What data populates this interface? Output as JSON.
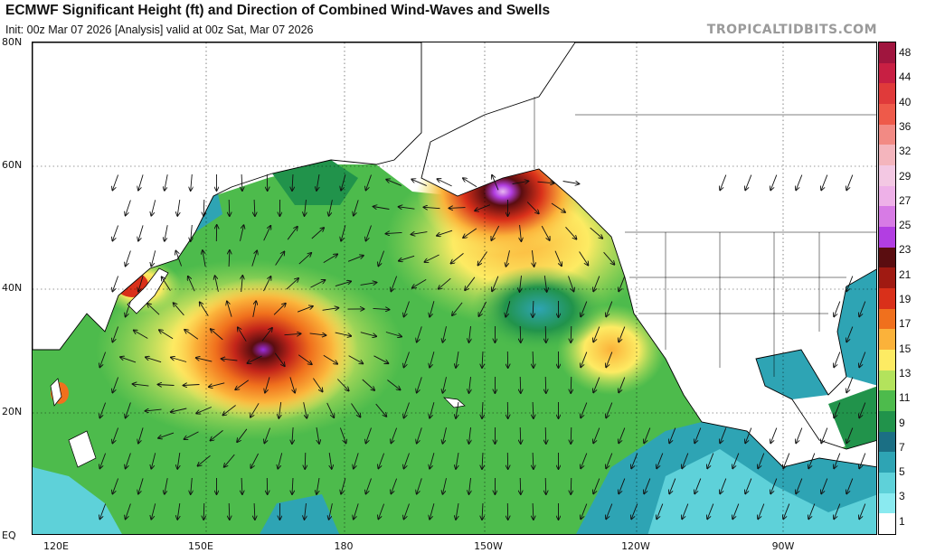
{
  "header": {
    "title": "ECMWF Significant Height (ft) and Direction of Combined Wind-Waves and Swells",
    "subtitle": "Init: 00z Mar 07 2026   [Analysis]   valid at 00z Sat, Mar 07 2026",
    "brand": "TROPICALTIDBITS.COM"
  },
  "map": {
    "lat_labels": [
      "80N",
      "60N",
      "40N",
      "20N",
      "EQ"
    ],
    "lon_labels": [
      "120E",
      "150E",
      "180",
      "150W",
      "120W",
      "90W"
    ]
  },
  "colorbar": {
    "labels": [
      "48",
      "44",
      "40",
      "36",
      "32",
      "29",
      "27",
      "25",
      "23",
      "21",
      "19",
      "17",
      "15",
      "13",
      "11",
      "9",
      "7",
      "5",
      "3",
      "1"
    ],
    "colors": [
      "#a0153e",
      "#c81f43",
      "#e03a3a",
      "#ee5a4a",
      "#f28a84",
      "#f4b5bd",
      "#f3c8e3",
      "#eeb1e8",
      "#d77be5",
      "#b23ee2",
      "#5a0d10",
      "#a01a12",
      "#d9301a",
      "#f0701d",
      "#fbb23a",
      "#fdeb63",
      "#b3e35c",
      "#4dbb4c",
      "#21934b",
      "#1b6f84",
      "#2ea4b4",
      "#5ed1d9",
      "#8aeaf0",
      "#ffffff"
    ]
  },
  "legend_colors": {
    "land": "#ffffff",
    "border": "#000000"
  }
}
